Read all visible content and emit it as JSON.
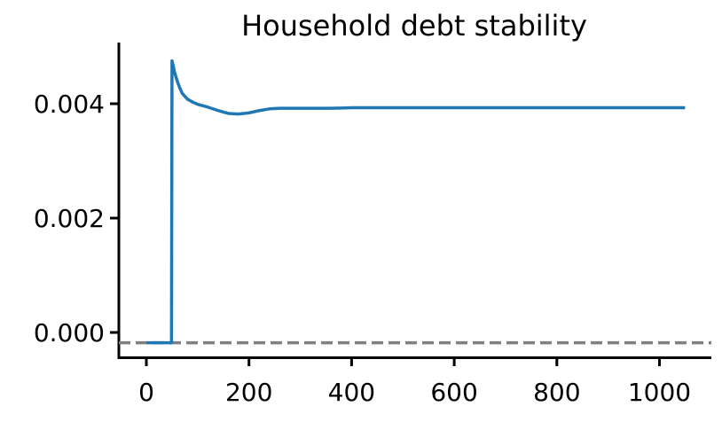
{
  "chart_data": {
    "type": "line",
    "title": "Household debt stability",
    "xlabel": "",
    "ylabel": "",
    "xlim": [
      -50,
      1100
    ],
    "ylim": [
      -0.00045,
      0.005
    ],
    "xticks": [
      0,
      200,
      400,
      600,
      800,
      1000
    ],
    "xtick_labels": [
      "0",
      "200",
      "400",
      "600",
      "800",
      "1000"
    ],
    "yticks": [
      0.0,
      0.002,
      0.004
    ],
    "ytick_labels": [
      "0.000",
      "0.002",
      "0.004"
    ],
    "grid": false,
    "legend": "none",
    "reference_line": {
      "y": -0.00018,
      "style": "dashed",
      "color": "#808080"
    },
    "series": [
      {
        "color": "#1f77b4",
        "x": [
          0,
          10,
          20,
          30,
          40,
          49,
          50,
          52,
          55,
          60,
          65,
          70,
          80,
          90,
          100,
          120,
          140,
          160,
          180,
          200,
          220,
          240,
          260,
          280,
          300,
          330,
          360,
          400,
          450,
          500,
          600,
          700,
          800,
          900,
          1000,
          1050
        ],
        "y": [
          -0.00018,
          -0.00018,
          -0.00018,
          -0.00018,
          -0.00018,
          -0.00018,
          0.00475,
          0.00468,
          0.00455,
          0.0044,
          0.00428,
          0.00418,
          0.00408,
          0.00403,
          0.00399,
          0.00394,
          0.00388,
          0.00383,
          0.00382,
          0.00384,
          0.00388,
          0.00391,
          0.00392,
          0.00392,
          0.00392,
          0.00392,
          0.00392,
          0.00393,
          0.00393,
          0.00393,
          0.00393,
          0.00393,
          0.00393,
          0.00393,
          0.00393,
          0.00393
        ]
      }
    ]
  }
}
